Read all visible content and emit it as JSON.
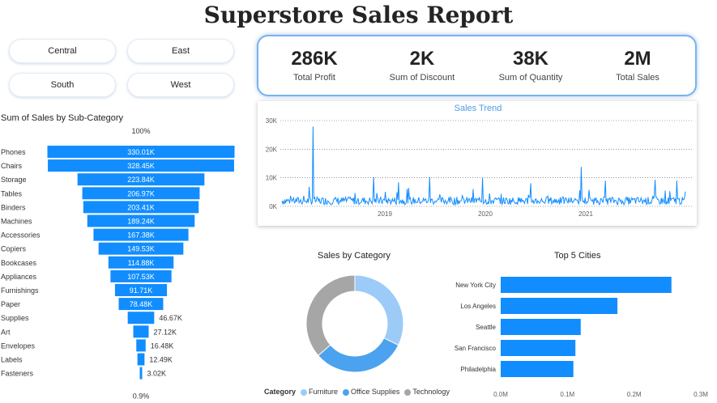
{
  "title": "Superstore Sales Report",
  "slicers": [
    "Central",
    "East",
    "South",
    "West"
  ],
  "kpis": [
    {
      "value": "286K",
      "label": "Total Profit"
    },
    {
      "value": "2K",
      "label": "Sum of Discount"
    },
    {
      "value": "38K",
      "label": "Sum of Quantity"
    },
    {
      "value": "2M",
      "label": "Total Sales"
    }
  ],
  "colors": {
    "accent": "#118dff",
    "light_blue": "#9ccbf7",
    "grey": "#a6a6a6",
    "mid_blue": "#4ba2ee"
  },
  "chart_data": [
    {
      "type": "bar",
      "subtype": "funnel",
      "title": "Sum of Sales by Sub-Category",
      "top_label": "100%",
      "bottom_label": "0.9%",
      "categories": [
        "Phones",
        "Chairs",
        "Storage",
        "Tables",
        "Binders",
        "Machines",
        "Accessories",
        "Copiers",
        "Bookcases",
        "Appliances",
        "Furnishings",
        "Paper",
        "Supplies",
        "Art",
        "Envelopes",
        "Labels",
        "Fasteners"
      ],
      "values": [
        330.01,
        328.45,
        223.84,
        206.97,
        203.41,
        189.24,
        167.38,
        149.53,
        114.88,
        107.53,
        91.71,
        78.48,
        46.67,
        27.12,
        16.48,
        12.49,
        3.02
      ],
      "value_labels": [
        "330.01K",
        "328.45K",
        "223.84K",
        "206.97K",
        "203.41K",
        "189.24K",
        "167.38K",
        "149.53K",
        "114.88K",
        "107.53K",
        "91.71K",
        "78.48K",
        "46.67K",
        "27.12K",
        "16.48K",
        "12.49K",
        "3.02K"
      ],
      "units": "K"
    },
    {
      "type": "line",
      "title": "Sales Trend",
      "y_ticks": [
        "0K",
        "10K",
        "20K",
        "30K"
      ],
      "ylim": [
        0,
        30000
      ],
      "x_ticks": [
        "2019",
        "2020",
        "2021"
      ],
      "grid": true
    },
    {
      "type": "pie",
      "subtype": "donut",
      "title": "Sales by Category",
      "legend_title": "Category",
      "categories": [
        "Furniture",
        "Office Supplies",
        "Technology"
      ],
      "values": [
        32.3,
        31.3,
        36.4
      ],
      "colors": [
        "#9ccbf7",
        "#4ba2ee",
        "#a6a6a6"
      ],
      "legend_position": "bottom"
    },
    {
      "type": "bar",
      "orientation": "horizontal",
      "title": "Top 5 Cities",
      "categories": [
        "New York City",
        "Los Angeles",
        "Seattle",
        "San Francisco",
        "Philadelphia"
      ],
      "values": [
        0.256,
        0.175,
        0.12,
        0.112,
        0.109
      ],
      "x_ticks": [
        "0.0M",
        "0.1M",
        "0.2M",
        "0.3M"
      ],
      "xlim": [
        0,
        0.3
      ]
    }
  ]
}
